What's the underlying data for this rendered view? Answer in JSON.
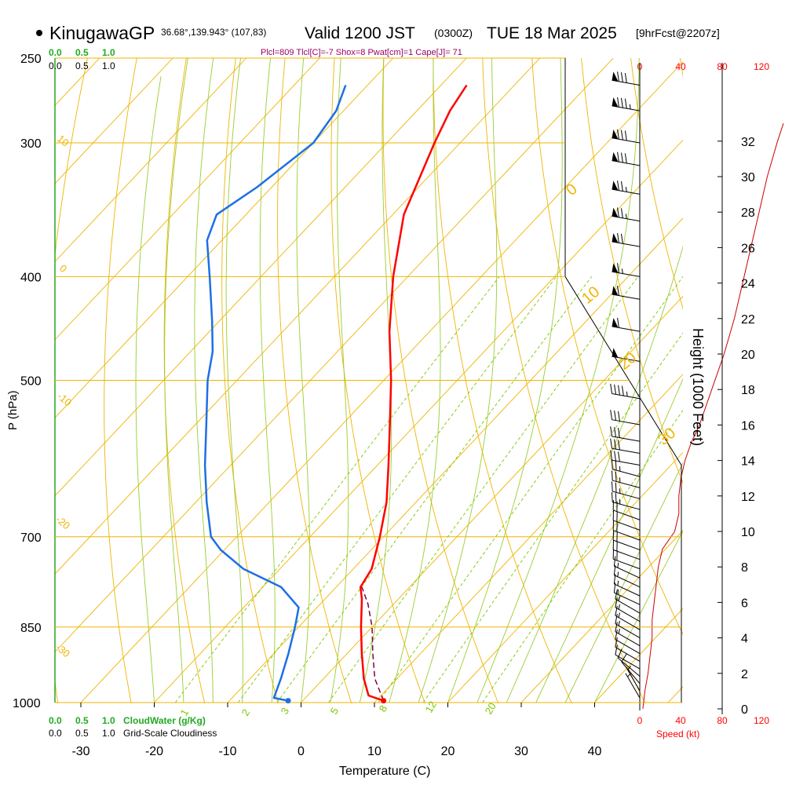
{
  "header": {
    "station": "KinugawaGP",
    "coords": "36.68°,139.943° (107,83)",
    "valid": "Valid 1200 JST",
    "utc": "(0300Z)",
    "date": "TUE 18 Mar 2025",
    "forecast": "[9hrFcst@2207z]"
  },
  "indices_line": "Plcl=809 Tlcl[C]=-7 Shox=8 Pwat[cm]=1 Cape[J]= 71",
  "colors": {
    "isotherm": "#f0b400",
    "dry_adiabat": "#f0b400",
    "moist_adiabat": "#9acd32",
    "mixing_ratio": "#7cc800",
    "temperature": "#ff0000",
    "dewpoint": "#1e6fe6",
    "parcel": "#800040",
    "cloud_scale": "#22aa22",
    "speed_scale": "#ff0000",
    "index_text": "#990066"
  },
  "chart_data": {
    "type": "skew-t",
    "xlabel": "Temperature (C)",
    "ylabel": "P (hPa)",
    "y2label": "Height (1000 Feet)",
    "x_ticks": [
      -30,
      -20,
      -10,
      0,
      10,
      20,
      30,
      40
    ],
    "x_tick_labels": [
      "-30",
      "-20",
      "-10",
      "0",
      "10",
      "20",
      "30",
      "40"
    ],
    "pressure_levels": [
      250,
      300,
      400,
      500,
      700,
      850,
      1000
    ],
    "pressure_labels": [
      "250",
      "300",
      "400",
      "500",
      "700",
      "850",
      "1000"
    ],
    "height_ticks_kft": [
      0,
      2,
      4,
      6,
      8,
      10,
      12,
      14,
      16,
      18,
      20,
      22,
      24,
      26,
      28,
      30,
      32
    ],
    "height_tick_labels": [
      "0",
      "2",
      "4",
      "6",
      "8",
      "10",
      "12",
      "14",
      "16",
      "18",
      "20",
      "22",
      "24",
      "26",
      "28",
      "30",
      "32"
    ],
    "cloud_scale_labels": [
      "0.0",
      "0.5",
      "1.0"
    ],
    "cloudwater_label": "CloudWater (g/Kg)",
    "cloudiness_label": "Grid-Scale Cloudiness",
    "speed_scale_labels": [
      "0",
      "40",
      "80",
      "120"
    ],
    "speed_label": "Speed (kt)",
    "mixing_ratio_labels": [
      "1",
      "2",
      "3",
      "5",
      "8",
      "12",
      "20"
    ],
    "dry_adiabat_labels": [
      "10",
      "0",
      "-10",
      "-20",
      "-30"
    ],
    "moist_adiabat_labels": [
      "0",
      "10",
      "20",
      "30"
    ],
    "temperature_profile": [
      {
        "p": 996,
        "t": 11.0
      },
      {
        "p": 985,
        "t": 8.3
      },
      {
        "p": 950,
        "t": 5.5
      },
      {
        "p": 900,
        "t": 2.0
      },
      {
        "p": 850,
        "t": -1.5
      },
      {
        "p": 800,
        "t": -5.0
      },
      {
        "p": 780,
        "t": -6.7
      },
      {
        "p": 750,
        "t": -7.5
      },
      {
        "p": 700,
        "t": -10.5
      },
      {
        "p": 650,
        "t": -14.0
      },
      {
        "p": 600,
        "t": -18.5
      },
      {
        "p": 550,
        "t": -23.5
      },
      {
        "p": 500,
        "t": -29.0
      },
      {
        "p": 450,
        "t": -35.5
      },
      {
        "p": 400,
        "t": -42.0
      },
      {
        "p": 350,
        "t": -48.5
      },
      {
        "p": 300,
        "t": -53.5
      },
      {
        "p": 280,
        "t": -55.5
      },
      {
        "p": 265,
        "t": -56.5
      }
    ],
    "dewpoint_profile": [
      {
        "p": 996,
        "t": -2.0
      },
      {
        "p": 990,
        "t": -4.3
      },
      {
        "p": 950,
        "t": -5.8
      },
      {
        "p": 900,
        "t": -8.0
      },
      {
        "p": 850,
        "t": -10.5
      },
      {
        "p": 815,
        "t": -12.5
      },
      {
        "p": 780,
        "t": -17.5
      },
      {
        "p": 750,
        "t": -25.0
      },
      {
        "p": 720,
        "t": -30.5
      },
      {
        "p": 700,
        "t": -33.5
      },
      {
        "p": 650,
        "t": -38.5
      },
      {
        "p": 600,
        "t": -43.5
      },
      {
        "p": 550,
        "t": -48.5
      },
      {
        "p": 500,
        "t": -54.0
      },
      {
        "p": 470,
        "t": -57.0
      },
      {
        "p": 440,
        "t": -61.0
      },
      {
        "p": 400,
        "t": -67.0
      },
      {
        "p": 370,
        "t": -72.0
      },
      {
        "p": 350,
        "t": -74.0
      },
      {
        "p": 330,
        "t": -72.0
      },
      {
        "p": 300,
        "t": -70.0
      },
      {
        "p": 280,
        "t": -71.0
      },
      {
        "p": 265,
        "t": -73.0
      }
    ],
    "parcel_profile": [
      {
        "p": 996,
        "t": 11.0
      },
      {
        "p": 950,
        "t": 7.0
      },
      {
        "p": 900,
        "t": 3.5
      },
      {
        "p": 850,
        "t": 0.0
      },
      {
        "p": 809,
        "t": -3.5
      },
      {
        "p": 780,
        "t": -6.5
      }
    ],
    "surface_temperature": 11.0,
    "surface_dewpoint": -2.0,
    "wind_profile": [
      {
        "p": 990,
        "speed": 5,
        "dir": 330
      },
      {
        "p": 975,
        "speed": 5,
        "dir": 330
      },
      {
        "p": 960,
        "speed": 10,
        "dir": 320
      },
      {
        "p": 945,
        "speed": 10,
        "dir": 310
      },
      {
        "p": 930,
        "speed": 10,
        "dir": 300
      },
      {
        "p": 915,
        "speed": 10,
        "dir": 300
      },
      {
        "p": 900,
        "speed": 10,
        "dir": 300
      },
      {
        "p": 885,
        "speed": 15,
        "dir": 300
      },
      {
        "p": 870,
        "speed": 15,
        "dir": 300
      },
      {
        "p": 855,
        "speed": 15,
        "dir": 300
      },
      {
        "p": 840,
        "speed": 15,
        "dir": 300
      },
      {
        "p": 825,
        "speed": 15,
        "dir": 300
      },
      {
        "p": 810,
        "speed": 15,
        "dir": 295
      },
      {
        "p": 795,
        "speed": 15,
        "dir": 295
      },
      {
        "p": 780,
        "speed": 15,
        "dir": 295
      },
      {
        "p": 765,
        "speed": 15,
        "dir": 295
      },
      {
        "p": 750,
        "speed": 20,
        "dir": 290
      },
      {
        "p": 735,
        "speed": 20,
        "dir": 290
      },
      {
        "p": 720,
        "speed": 20,
        "dir": 290
      },
      {
        "p": 705,
        "speed": 20,
        "dir": 290
      },
      {
        "p": 690,
        "speed": 20,
        "dir": 290
      },
      {
        "p": 675,
        "speed": 20,
        "dir": 290
      },
      {
        "p": 660,
        "speed": 25,
        "dir": 285
      },
      {
        "p": 645,
        "speed": 25,
        "dir": 285
      },
      {
        "p": 630,
        "speed": 25,
        "dir": 285
      },
      {
        "p": 615,
        "speed": 25,
        "dir": 285
      },
      {
        "p": 600,
        "speed": 30,
        "dir": 280
      },
      {
        "p": 585,
        "speed": 30,
        "dir": 280
      },
      {
        "p": 570,
        "speed": 30,
        "dir": 280
      },
      {
        "p": 550,
        "speed": 30,
        "dir": 280
      },
      {
        "p": 520,
        "speed": 45,
        "dir": 280
      },
      {
        "p": 480,
        "speed": 50,
        "dir": 280
      },
      {
        "p": 450,
        "speed": 60,
        "dir": 280
      },
      {
        "p": 420,
        "speed": 60,
        "dir": 280
      },
      {
        "p": 400,
        "speed": 65,
        "dir": 280
      },
      {
        "p": 375,
        "speed": 70,
        "dir": 280
      },
      {
        "p": 355,
        "speed": 75,
        "dir": 280
      },
      {
        "p": 335,
        "speed": 75,
        "dir": 280
      },
      {
        "p": 315,
        "speed": 80,
        "dir": 280
      },
      {
        "p": 300,
        "speed": 80,
        "dir": 280
      },
      {
        "p": 280,
        "speed": 85,
        "dir": 280
      },
      {
        "p": 265,
        "speed": 80,
        "dir": 280
      }
    ],
    "speed_profile": [
      {
        "h": 0,
        "s": 3
      },
      {
        "h": 1,
        "s": 5
      },
      {
        "h": 2,
        "s": 8
      },
      {
        "h": 3,
        "s": 10
      },
      {
        "h": 4,
        "s": 12
      },
      {
        "h": 5,
        "s": 12
      },
      {
        "h": 6,
        "s": 14
      },
      {
        "h": 7,
        "s": 16
      },
      {
        "h": 8,
        "s": 18
      },
      {
        "h": 9,
        "s": 22
      },
      {
        "h": 10,
        "s": 34
      },
      {
        "h": 11,
        "s": 38
      },
      {
        "h": 12,
        "s": 38
      },
      {
        "h": 13,
        "s": 40
      },
      {
        "h": 14,
        "s": 44
      },
      {
        "h": 15,
        "s": 50
      },
      {
        "h": 16,
        "s": 58
      },
      {
        "h": 18,
        "s": 70
      },
      {
        "h": 20,
        "s": 82
      },
      {
        "h": 22,
        "s": 92
      },
      {
        "h": 24,
        "s": 100
      },
      {
        "h": 26,
        "s": 108
      },
      {
        "h": 28,
        "s": 116
      },
      {
        "h": 30,
        "s": 124
      },
      {
        "h": 32,
        "s": 134
      },
      {
        "h": 33,
        "s": 140
      }
    ]
  }
}
